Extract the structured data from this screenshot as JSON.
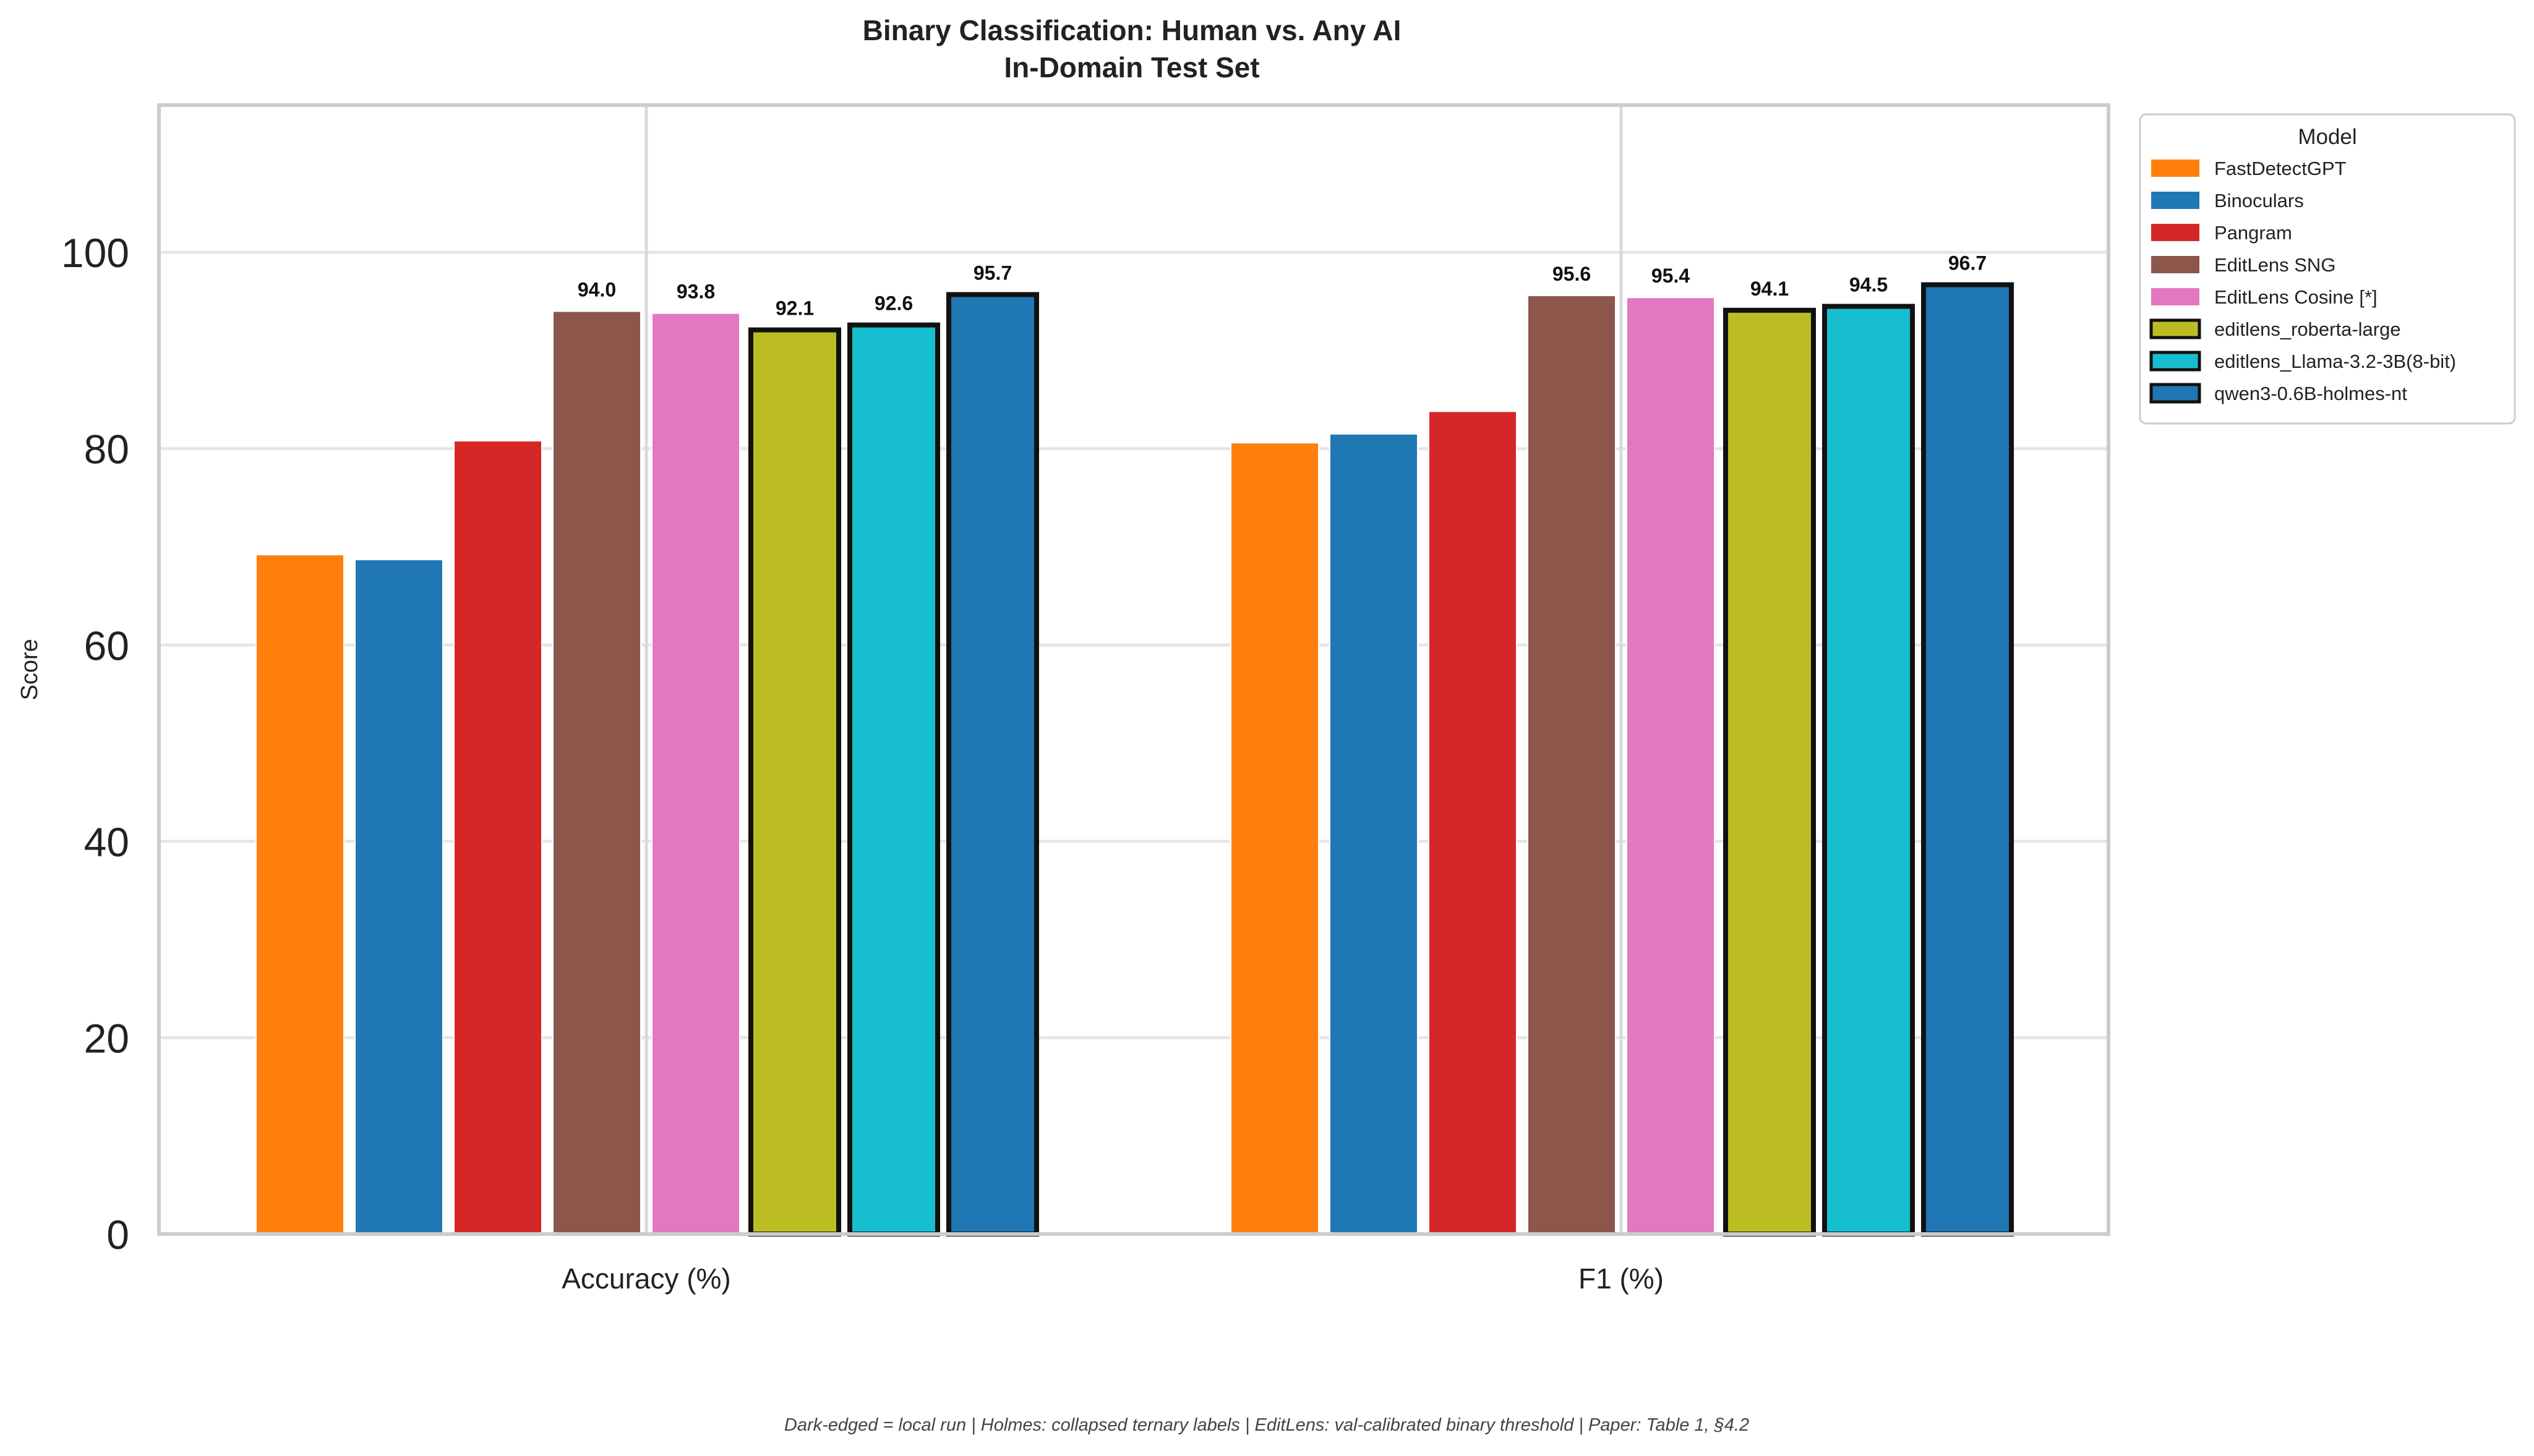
{
  "chart_data": {
    "type": "bar",
    "title": "Binary Classification: Human vs. Any AI",
    "subtitle": "In-Domain Test Set",
    "xlabel": "",
    "ylabel": "Score",
    "ylim": [
      0,
      115
    ],
    "yticks": [
      0,
      20,
      40,
      60,
      80,
      100
    ],
    "grid": true,
    "legend_title": "Model",
    "legend_position": "outside-right",
    "categories": [
      "Accuracy (%)",
      "F1 (%)"
    ],
    "series": [
      {
        "name": "FastDetectGPT",
        "color": "#ff7f0e",
        "edged": false,
        "values": [
          69.2,
          80.6
        ],
        "labels": [
          null,
          null
        ]
      },
      {
        "name": "Binoculars",
        "color": "#1f77b4",
        "edged": false,
        "values": [
          68.7,
          81.5
        ],
        "labels": [
          null,
          null
        ]
      },
      {
        "name": "Pangram",
        "color": "#d62728",
        "edged": false,
        "values": [
          80.8,
          83.8
        ],
        "labels": [
          null,
          null
        ]
      },
      {
        "name": "EditLens SNG",
        "color": "#8c564b",
        "edged": false,
        "values": [
          94.0,
          95.6
        ],
        "labels": [
          "94.0",
          "95.6"
        ]
      },
      {
        "name": "EditLens Cosine [*]",
        "color": "#e377c2",
        "edged": false,
        "values": [
          93.8,
          95.4
        ],
        "labels": [
          "93.8",
          "95.4"
        ]
      },
      {
        "name": "editlens_roberta-large",
        "color": "#bcbd22",
        "edged": true,
        "values": [
          92.1,
          94.1
        ],
        "labels": [
          "92.1",
          "94.1"
        ]
      },
      {
        "name": "editlens_Llama-3.2-3B(8-bit)",
        "color": "#17becf",
        "edged": true,
        "values": [
          92.6,
          94.5
        ],
        "labels": [
          "92.6",
          "94.5"
        ]
      },
      {
        "name": "qwen3-0.6B-holmes-nt",
        "color": "#1f77b4",
        "edged": true,
        "values": [
          95.7,
          96.7
        ],
        "labels": [
          "95.7",
          "96.7"
        ]
      }
    ],
    "footnote": "Dark-edged = local run  |  Holmes: collapsed ternary labels  |  EditLens: val-calibrated binary threshold  |  Paper: Table 1, §4.2"
  }
}
